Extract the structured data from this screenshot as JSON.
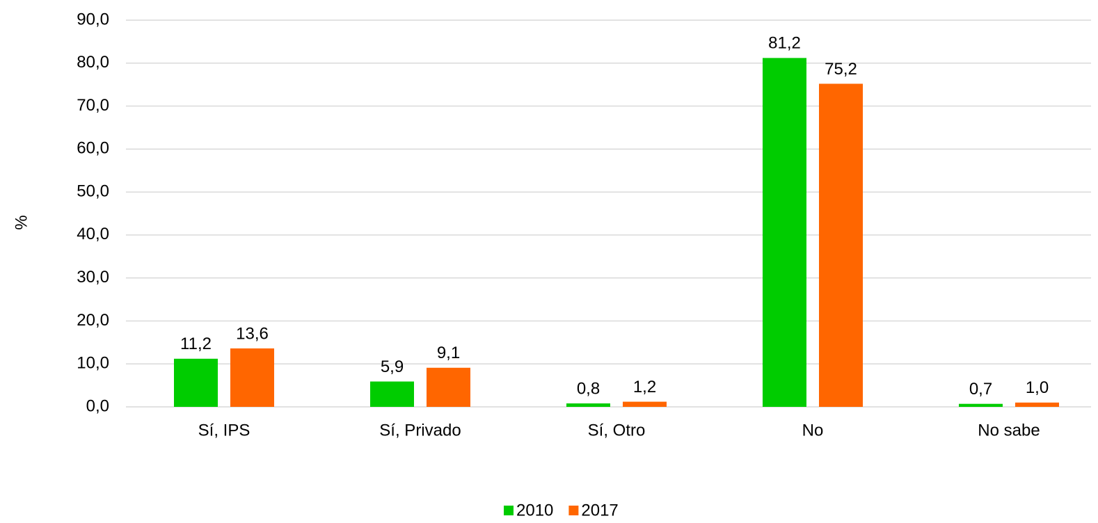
{
  "chart_data": {
    "type": "bar",
    "y_label": "%",
    "categories": [
      "Sí, IPS",
      "Sí, Privado",
      "Sí, Otro",
      "No",
      "No sabe"
    ],
    "series": [
      {
        "name": "2010",
        "color": "#00cc00",
        "values": [
          11.2,
          5.9,
          0.8,
          81.2,
          0.7
        ],
        "value_labels": [
          "11,2",
          "5,9",
          "0,8",
          "81,2",
          "0,7"
        ]
      },
      {
        "name": "2017",
        "color": "#ff6600",
        "values": [
          13.6,
          9.1,
          1.2,
          75.2,
          1.0
        ],
        "value_labels": [
          "13,6",
          "9,1",
          "1,2",
          "75,2",
          "1,0"
        ]
      }
    ],
    "ylim": [
      0,
      90
    ],
    "yticks": [
      {
        "value": 0,
        "label": "0,0"
      },
      {
        "value": 10,
        "label": "10,0"
      },
      {
        "value": 20,
        "label": "20,0"
      },
      {
        "value": 30,
        "label": "30,0"
      },
      {
        "value": 40,
        "label": "40,0"
      },
      {
        "value": 50,
        "label": "50,0"
      },
      {
        "value": 60,
        "label": "60,0"
      },
      {
        "value": 70,
        "label": "70,0"
      },
      {
        "value": 80,
        "label": "80,0"
      },
      {
        "value": 90,
        "label": "90,0"
      }
    ],
    "grid": true,
    "legend": "bottom"
  }
}
